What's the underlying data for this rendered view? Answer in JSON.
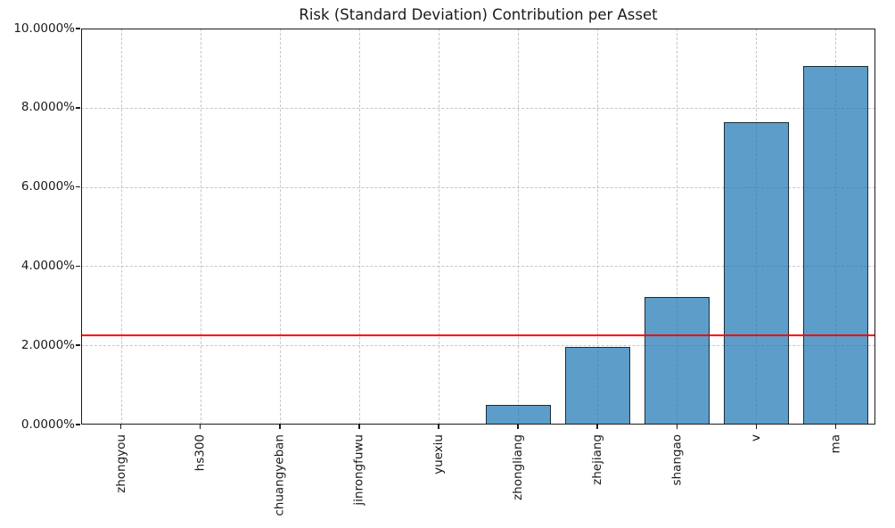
{
  "chart_data": {
    "type": "bar",
    "title": "Risk (Standard Deviation) Contribution per Asset",
    "categories": [
      "zhongyou",
      "hs300",
      "chuangyeban",
      "jinrongfuwu",
      "yuexiu",
      "zhongliang",
      "zhejiang",
      "shangao",
      "v",
      "ma"
    ],
    "values": [
      0.01,
      0.01,
      0.01,
      0.02,
      0.02,
      0.5,
      1.95,
      3.21,
      7.64,
      9.06
    ],
    "unit": "%",
    "xlabel": "",
    "ylabel": "",
    "ylim": [
      0,
      10
    ],
    "ytick_values": [
      0,
      2,
      4,
      6,
      8,
      10
    ],
    "ytick_labels": [
      "0.0000%",
      "2.0000%",
      "4.0000%",
      "6.0000%",
      "8.0000%",
      "10.0000%"
    ],
    "grid": true,
    "legend": "none",
    "xtick_rotation_deg": 90,
    "reference_line": {
      "value": 2.25,
      "color": "#ff0000"
    },
    "bar_fill_color": "#1f77b4",
    "bar_fill_alpha": 0.72,
    "bar_edge_color": "#000000"
  }
}
